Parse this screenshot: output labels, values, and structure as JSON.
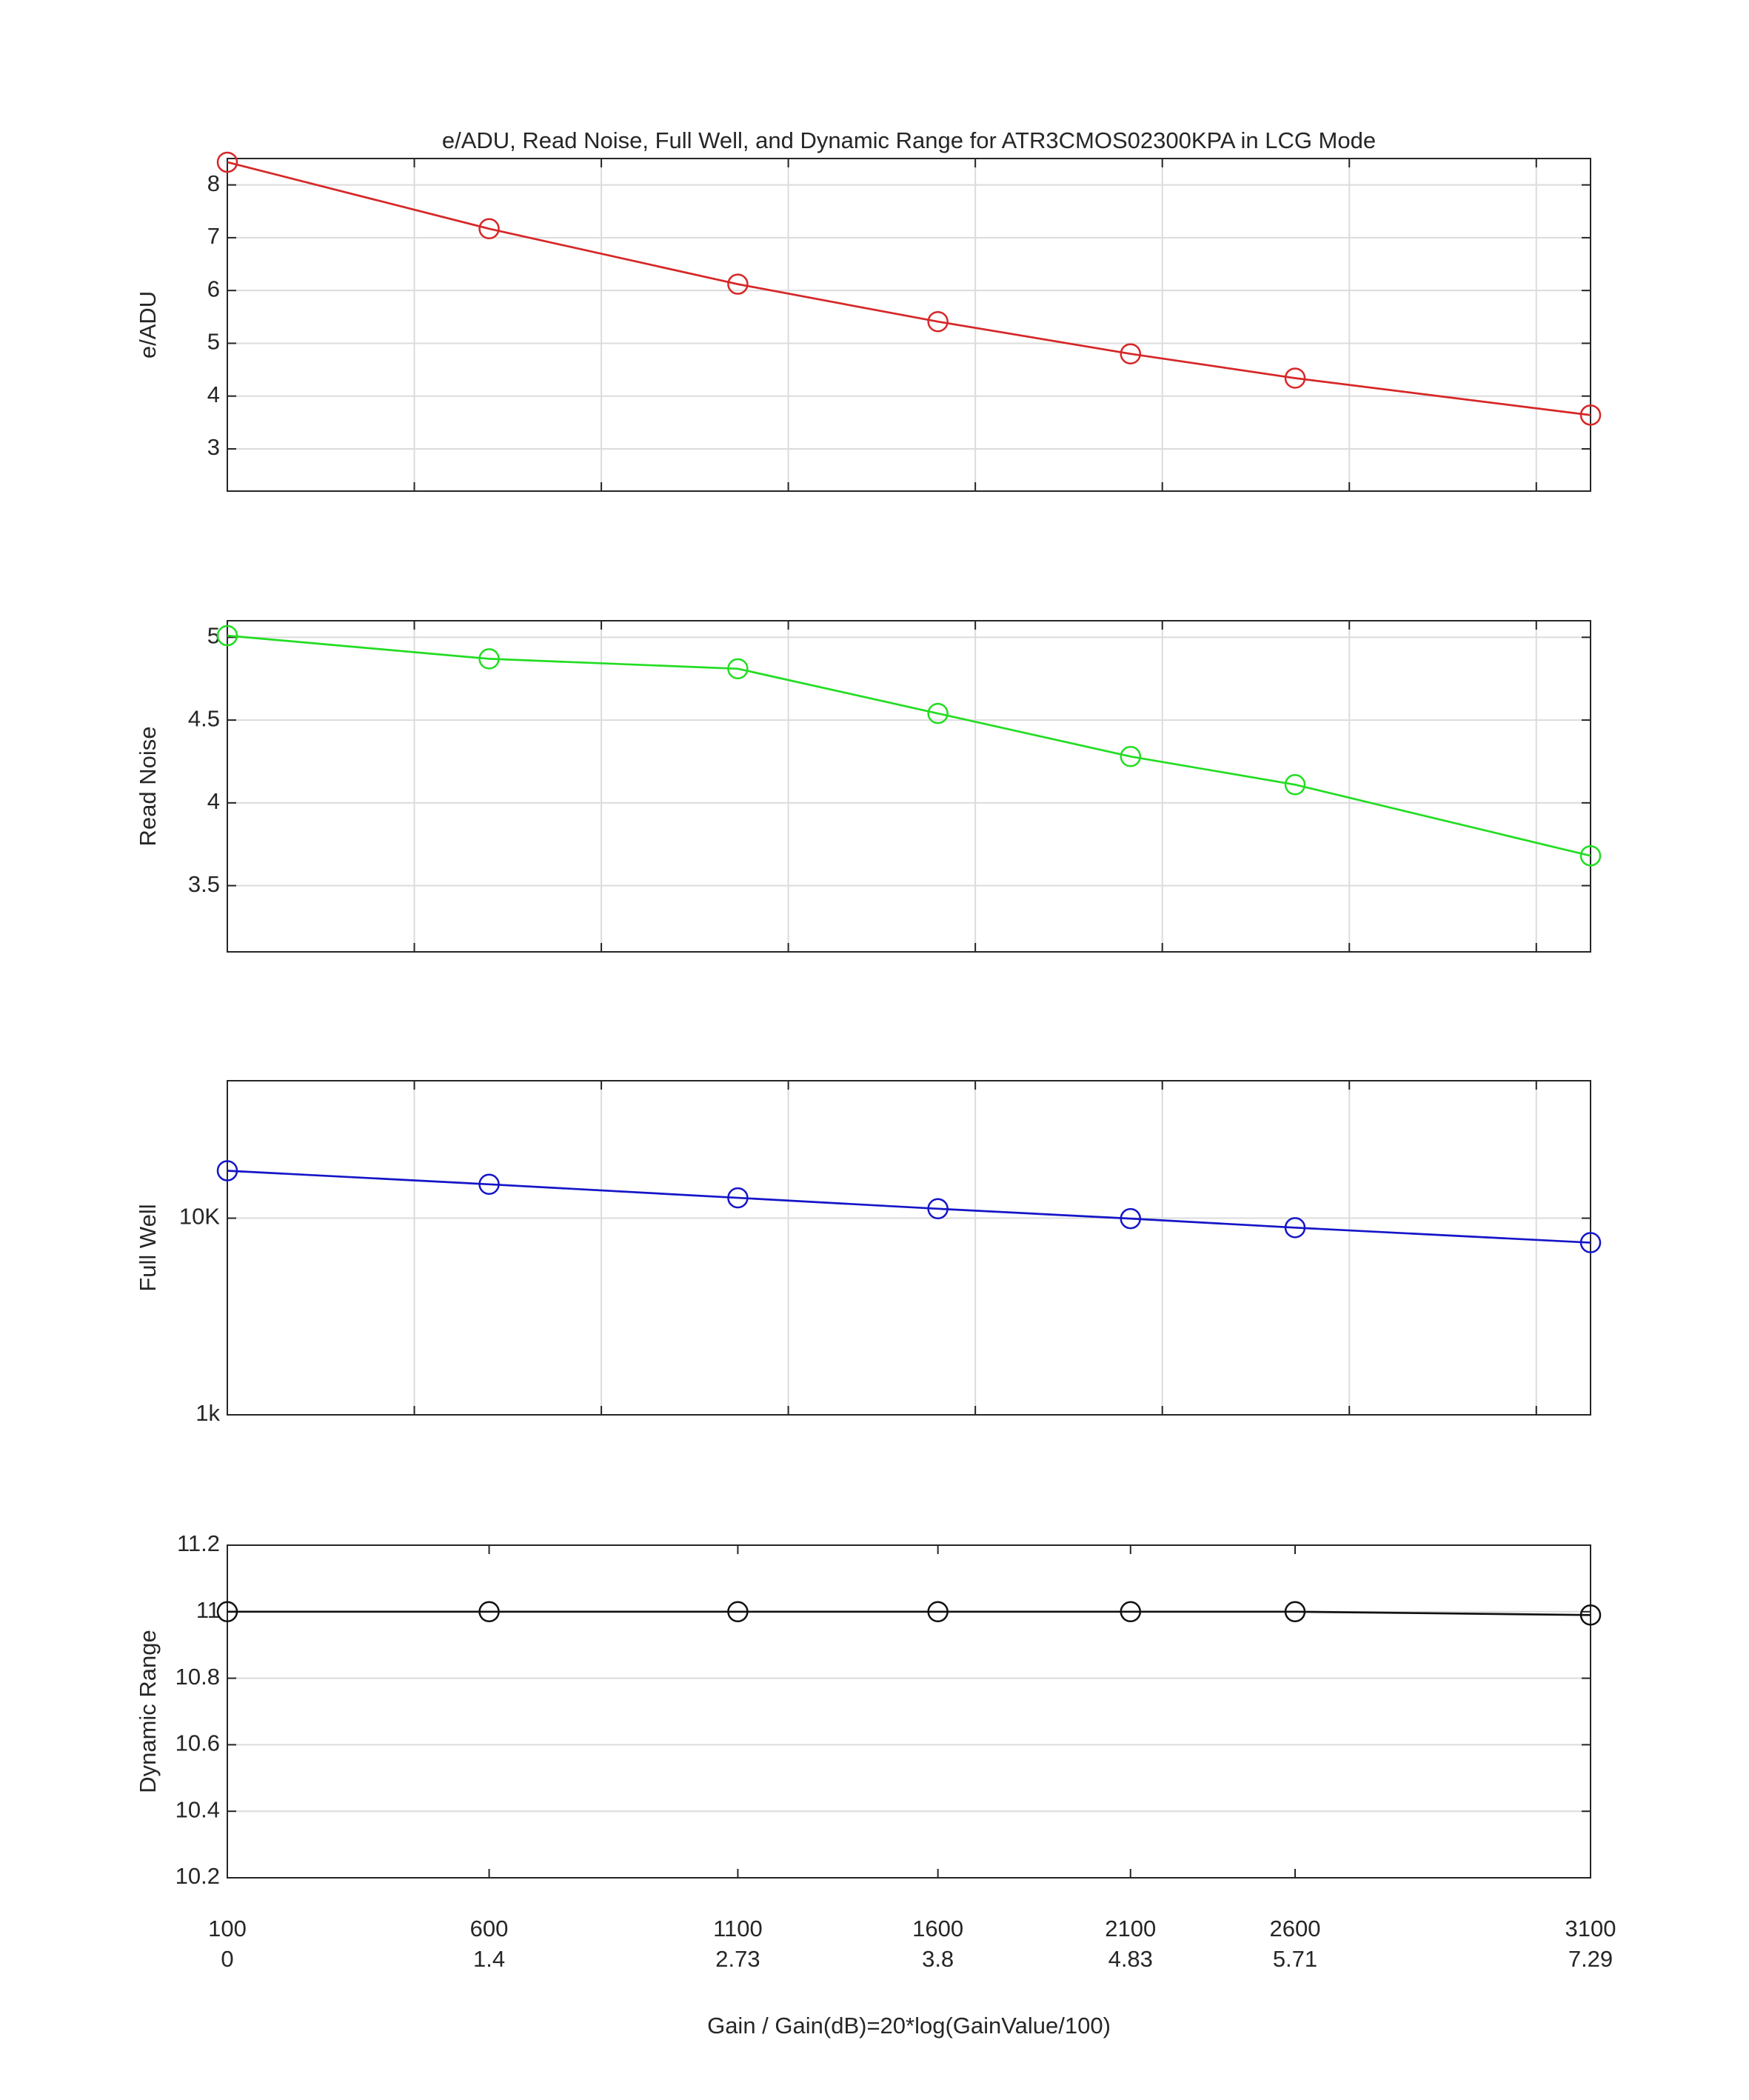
{
  "chart_data": [
    {
      "type": "line",
      "title": "e/ADU, Read Noise, Full Well, and Dynamic Range for ATR3CMOS02300KPA in LCG Mode",
      "ylabel": "e/ADU",
      "x": [
        0,
        1.4,
        2.73,
        3.8,
        4.83,
        5.71,
        7.29
      ],
      "values": [
        8.43,
        7.17,
        6.12,
        5.41,
        4.8,
        4.34,
        3.64
      ],
      "color": "#d62728",
      "xlim": [
        0,
        7.29
      ],
      "xticks": [
        1,
        2,
        3,
        4,
        5,
        6,
        7
      ],
      "show_xtick_labels": false,
      "ylim": [
        2.2,
        8.5
      ],
      "yticks": [
        3,
        4,
        5,
        6,
        7,
        8
      ],
      "grid": true,
      "log_y": false
    },
    {
      "type": "line",
      "ylabel": "Read Noise",
      "x": [
        0,
        1.4,
        2.73,
        3.8,
        4.83,
        5.71,
        7.29
      ],
      "values": [
        5.01,
        4.87,
        4.81,
        4.54,
        4.28,
        4.11,
        3.68
      ],
      "color": "#22dd22",
      "xlim": [
        0,
        7.29
      ],
      "xticks": [
        1,
        2,
        3,
        4,
        5,
        6,
        7
      ],
      "show_xtick_labels": false,
      "ylim": [
        3.1,
        5.1
      ],
      "yticks": [
        3.5,
        4,
        4.5,
        5
      ],
      "grid": true,
      "log_y": false
    },
    {
      "type": "line",
      "ylabel": "Full Well",
      "x": [
        0,
        1.4,
        2.73,
        3.8,
        4.83,
        5.71,
        7.29
      ],
      "values": [
        17430,
        14870,
        12690,
        11170,
        9950,
        8950,
        7510
      ],
      "color": "#1515c8",
      "xlim": [
        0,
        7.29
      ],
      "xticks": [
        1,
        2,
        3,
        4,
        5,
        6,
        7
      ],
      "show_xtick_labels": false,
      "ylim": [
        1000,
        50000
      ],
      "yticks": [
        {
          "value": 1000,
          "label": "1k"
        },
        {
          "value": 10000,
          "label": "10K"
        }
      ],
      "grid": true,
      "log_y": true
    },
    {
      "type": "line",
      "ylabel": "Dynamic Range",
      "xlabel": "Gain / Gain(dB)=20*log(GainValue/100)",
      "x": [
        0,
        1.4,
        2.73,
        3.8,
        4.83,
        5.71,
        7.29
      ],
      "values": [
        11,
        11,
        11,
        11,
        11,
        11,
        10.99
      ],
      "color": "#111111",
      "xlim": [
        0,
        7.29
      ],
      "xticks": [
        0,
        1.4,
        2.73,
        3.8,
        4.83,
        5.71,
        7.29
      ],
      "xtick_gain_labels": [
        100,
        600,
        1100,
        1600,
        2100,
        2600,
        3100
      ],
      "show_xtick_labels": true,
      "ylim": [
        10.2,
        11.2
      ],
      "yticks": [
        10.2,
        10.4,
        10.6,
        10.8,
        11,
        11.2
      ],
      "grid": true,
      "log_y": false
    }
  ]
}
